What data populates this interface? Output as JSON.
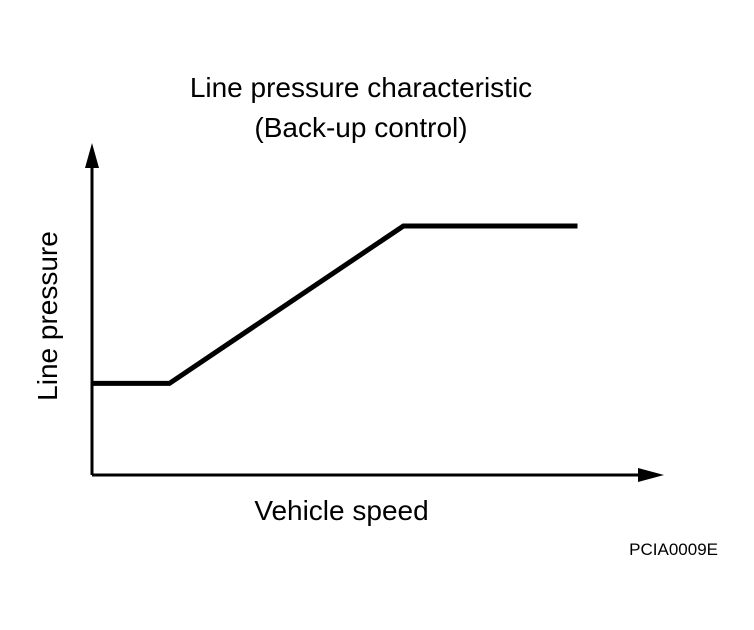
{
  "chart_data": {
    "type": "line",
    "title": "Line pressure characteristic",
    "subtitle": "(Back-up control)",
    "xlabel": "Vehicle speed",
    "ylabel": "Line pressure",
    "xlim": [
      0,
      100
    ],
    "ylim": [
      0,
      100
    ],
    "grid": false,
    "series": [
      {
        "x": [
          0,
          12.4,
          49.9,
          77.8
        ],
        "y": [
          36.8,
          36.8,
          100,
          100
        ]
      }
    ]
  },
  "figure_id": "PCIA0009E"
}
